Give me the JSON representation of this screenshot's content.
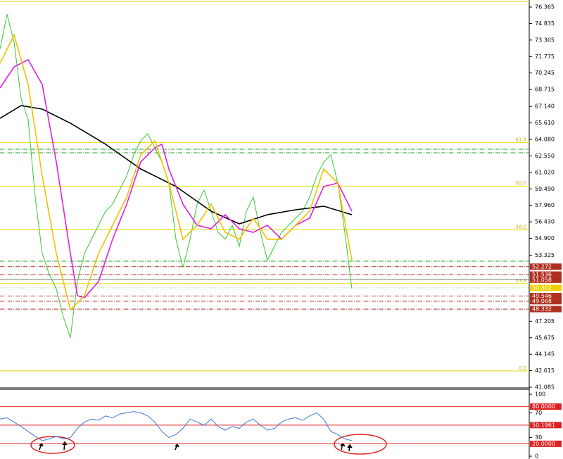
{
  "chart_data": [
    {
      "type": "line",
      "xlim": [
        0,
        75
      ],
      "ylim": [
        41.02,
        77.02
      ],
      "yticks": [
        {
          "value": 76.365,
          "label": "76.365"
        },
        {
          "value": 74.835,
          "label": "74.835"
        },
        {
          "value": 73.305,
          "label": "73.305"
        },
        {
          "value": 71.775,
          "label": "71.775"
        },
        {
          "value": 70.245,
          "label": "70.245"
        },
        {
          "value": 68.715,
          "label": "68.715"
        },
        {
          "value": 67.14,
          "label": "67.140"
        },
        {
          "value": 65.61,
          "label": "65.610"
        },
        {
          "value": 64.08,
          "label": "64.080"
        },
        {
          "value": 62.55,
          "label": "62.550"
        },
        {
          "value": 61.02,
          "label": "61.020"
        },
        {
          "value": 59.49,
          "label": "59.490"
        },
        {
          "value": 57.96,
          "label": "57.960"
        },
        {
          "value": 56.43,
          "label": "56.430"
        },
        {
          "value": 54.9,
          "label": "54.900"
        },
        {
          "value": 53.325,
          "label": "53.325"
        },
        {
          "value": 47.205,
          "label": "47.205"
        },
        {
          "value": 45.675,
          "label": "45.675"
        },
        {
          "value": 44.145,
          "label": "44.145"
        },
        {
          "value": 42.615,
          "label": "42.615"
        },
        {
          "value": 41.085,
          "label": "41.085"
        }
      ],
      "x": [
        0,
        1,
        2,
        3,
        4,
        5,
        6,
        7,
        8,
        9,
        10,
        11,
        12,
        13,
        14,
        15,
        16,
        17,
        18,
        19,
        20,
        21,
        22,
        23,
        24,
        25,
        26,
        27,
        28,
        29,
        30,
        31,
        32,
        33,
        34,
        35,
        36,
        37,
        38,
        39,
        40,
        41,
        42,
        43,
        44,
        45,
        46,
        47,
        48,
        49,
        50
      ],
      "values": [
        72.45,
        75.71,
        73.1,
        67.87,
        65.91,
        58.73,
        53.5,
        51.54,
        50.23,
        47.62,
        45.66,
        50.89,
        53.5,
        54.81,
        56.11,
        57.42,
        58.07,
        59.38,
        60.69,
        62.65,
        63.95,
        64.61,
        63.3,
        62.0,
        60.03,
        54.81,
        52.19,
        54.81,
        58.07,
        59.38,
        57.42,
        55.46,
        54.81,
        56.11,
        54.15,
        57.42,
        58.73,
        55.46,
        52.85,
        54.15,
        55.46,
        56.11,
        56.77,
        57.42,
        58.73,
        60.69,
        62.0,
        62.65,
        60.03,
        55.46,
        50.23
      ],
      "color": "#33cc33",
      "series": [
        {
          "color": "#000000",
          "x": [
            0,
            3,
            6,
            10,
            15,
            20,
            25,
            30,
            34,
            38,
            42,
            46,
            50
          ],
          "values": [
            66.04,
            67.22,
            66.89,
            65.59,
            63.63,
            61.34,
            59.71,
            57.42,
            56.24,
            57.09,
            57.55,
            57.88,
            57.09
          ]
        },
        {
          "color": "#e020e0",
          "x": [
            0,
            2,
            4,
            6,
            8,
            10,
            11,
            12,
            14,
            16,
            18,
            20,
            22,
            23,
            24,
            26,
            28,
            30,
            32,
            34,
            36,
            38,
            40,
            42,
            44,
            46,
            48,
            50
          ],
          "values": [
            68.85,
            70.81,
            71.47,
            69.18,
            61.99,
            53.5,
            49.58,
            49.39,
            50.89,
            54.81,
            58.07,
            61.99,
            63.3,
            63.63,
            61.34,
            58.07,
            56.11,
            55.79,
            57.09,
            55.79,
            55.46,
            56.11,
            54.81,
            56.11,
            56.77,
            59.71,
            60.03,
            57.42
          ]
        },
        {
          "color": "#f0c000",
          "x": [
            0,
            2,
            4,
            6,
            8,
            10,
            12,
            14,
            16,
            18,
            20,
            22,
            24,
            26,
            28,
            30,
            32,
            34,
            36,
            38,
            40,
            42,
            44,
            46,
            48,
            50
          ],
          "values": [
            71.14,
            73.75,
            69.18,
            60.69,
            53.5,
            48.27,
            49.58,
            53.5,
            56.11,
            58.73,
            62.65,
            63.95,
            60.03,
            54.81,
            56.11,
            58.07,
            55.46,
            54.81,
            56.77,
            54.81,
            54.81,
            56.11,
            57.42,
            61.34,
            60.03,
            52.85
          ]
        }
      ],
      "levels": [
        {
          "value": 76.89,
          "color": "#e8d800",
          "style": "solid"
        },
        {
          "value": 63.8,
          "color": "#e8d800",
          "style": "solid",
          "label": "61.8"
        },
        {
          "value": 59.75,
          "color": "#e8d800",
          "style": "solid",
          "label": "50.0"
        },
        {
          "value": 55.7,
          "color": "#e8d800",
          "style": "solid",
          "label": "38.2"
        },
        {
          "value": 50.7,
          "color": "#e8d800",
          "style": "solid",
          "label": "23.6"
        },
        {
          "value": 42.6,
          "color": "#e8d800",
          "style": "solid",
          "label": "0.0"
        },
        {
          "value": 63.17,
          "color": "#20a020",
          "style": "dashdot"
        },
        {
          "value": 62.84,
          "color": "#20a020",
          "style": "dashdot"
        },
        {
          "value": 52.78,
          "color": "#20a020",
          "style": "dashdot"
        },
        {
          "value": 52.272,
          "color": "#b03020",
          "style": "dashdot",
          "box": "#b03020",
          "label": "52.272"
        },
        {
          "value": 51.536,
          "color": "#b03020",
          "style": "dashdot",
          "box": "#b03020",
          "label": "51.536"
        },
        {
          "value": 51.058,
          "color": "#808080",
          "style": "solid",
          "box": "#b03020",
          "label": "51.058"
        },
        {
          "value": 50.302,
          "color": "#c8c8c8",
          "style": "dotted",
          "box": "#f0d000",
          "label": "50.302"
        },
        {
          "value": 49.546,
          "color": "#b03020",
          "style": "dashdot",
          "box": "#b03020",
          "label": "49.546"
        },
        {
          "value": 49.068,
          "color": "#b03020",
          "style": "dashdot",
          "box": "#b03020",
          "label": "49.068"
        },
        {
          "value": 48.332,
          "color": "#b03020",
          "style": "dashdot",
          "box": "#b03020",
          "label": "48.332"
        }
      ]
    },
    {
      "type": "line",
      "xlim": [
        0,
        75
      ],
      "ylim": [
        0,
        100
      ],
      "yticks": [
        100,
        70,
        30,
        0
      ],
      "x": [
        0,
        1,
        2,
        3,
        4,
        5,
        6,
        7,
        8,
        9,
        10,
        11,
        12,
        13,
        14,
        15,
        16,
        17,
        18,
        19,
        20,
        21,
        22,
        23,
        24,
        25,
        26,
        27,
        28,
        29,
        30,
        31,
        32,
        33,
        34,
        35,
        36,
        37,
        38,
        39,
        40,
        41,
        42,
        43,
        44,
        45,
        46,
        47,
        48,
        49,
        50
      ],
      "values": [
        60,
        62,
        55,
        48,
        40,
        32,
        25,
        28,
        32,
        28,
        30,
        45,
        55,
        60,
        58,
        65,
        62,
        68,
        70,
        72,
        70,
        65,
        55,
        40,
        30,
        35,
        45,
        60,
        55,
        50,
        60,
        48,
        42,
        48,
        45,
        55,
        60,
        50,
        42,
        45,
        55,
        60,
        62,
        58,
        65,
        70,
        60,
        40,
        35,
        28,
        25
      ],
      "color": "#3a7ad8",
      "levels": [
        {
          "value": 80,
          "color": "#e02020",
          "style": "solid",
          "box": "#e02020",
          "label": "80.0000"
        },
        {
          "value": 50.1961,
          "color": "#e02020",
          "style": "solid",
          "box": "#e02020",
          "label": "50.1961"
        },
        {
          "value": 20,
          "color": "#e02020",
          "style": "solid",
          "box": "#e02020",
          "label": "20.0000"
        }
      ]
    }
  ]
}
